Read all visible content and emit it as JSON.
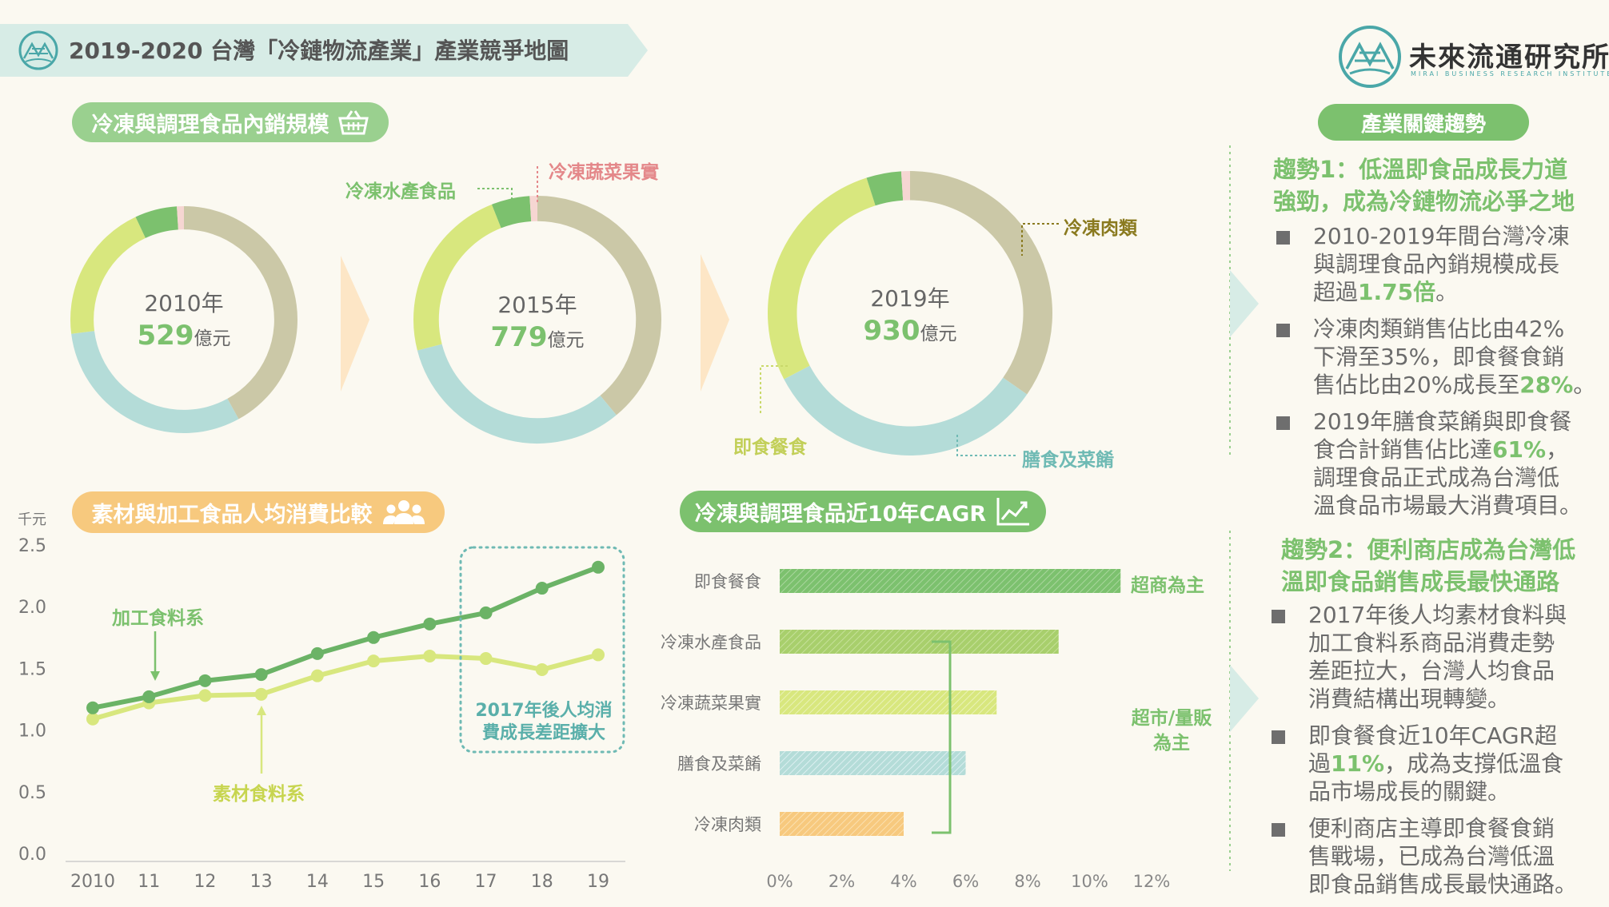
{
  "header": {
    "title": "2019-2020 台灣「冷鏈物流產業」產業競爭地圖"
  },
  "brand": {
    "name": "未來流通研究所",
    "tagline": "MIRAI BUSINESS RESEARCH INSTITUTE"
  },
  "sections": {
    "domestic_scale": "冷凍與調理食品內銷規模",
    "per_capita": "素材與加工食品人均消費比較",
    "cagr": "冷凍與調理食品近10年CAGR",
    "trends": "產業關鍵趨勢"
  },
  "donut_labels": {
    "seafood": "冷凍水產食品",
    "vegetables": "冷凍蔬菜果實",
    "meat": "冷凍肉類",
    "ready_meals": "即食餐食",
    "side_dishes": "膳食及菜餚"
  },
  "line_annotations": {
    "processed": "加工食料系",
    "raw": "素材食料系",
    "gap_note_line1": "2017年後人均消",
    "gap_note_line2": "費成長差距擴大"
  },
  "bar_annotations": {
    "cvs": "超商為主",
    "market_line1": "超市/量販",
    "market_line2": "為主"
  },
  "trends": {
    "trend1_title_line1": "趨勢1：低溫即食品成長力道",
    "trend1_title_line2": "強勁，成為冷鏈物流必爭之地",
    "t1b1_l1": "2010-2019年間台灣冷凍",
    "t1b1_l2": "與調理食品內銷規模成長",
    "t1b1_l3a": "超過",
    "t1b1_l3b": "1.75倍",
    "t1b1_l3c": "。",
    "t1b2_l1": "冷凍肉類銷售佔比由42%",
    "t1b2_l2": "下滑至35%，即食餐食銷",
    "t1b2_l3a": "售佔比由20%成長至",
    "t1b2_l3b": "28%",
    "t1b2_l3c": "。",
    "t1b3_l1": "2019年膳食菜餚與即食餐",
    "t1b3_l2a": "食合計銷售佔比達",
    "t1b3_l2b": "61%",
    "t1b3_l2c": "，",
    "t1b3_l3": "調理食品正式成為台灣低",
    "t1b3_l4": "溫食品市場最大消費項目。",
    "trend2_title_line1": "趨勢2：便利商店成為台灣低",
    "trend2_title_line2": "溫即食品銷售成長最快通路",
    "t2b1_l1": "2017年後人均素材食料與",
    "t2b1_l2": "加工食料系商品消費走勢",
    "t2b1_l3": "差距拉大，台灣人均食品",
    "t2b1_l4": "消費結構出現轉變。",
    "t2b2_l1": "即食餐食近10年CAGR超",
    "t2b2_l2a": "過",
    "t2b2_l2b": "11%",
    "t2b2_l2c": "，成為支撐低溫食",
    "t2b2_l3": "品市場成長的關鍵。",
    "t2b3_l1": "便利商店主導即食餐食銷",
    "t2b3_l2": "售戰場，已成為台灣低溫",
    "t2b3_l3": "即食品銷售成長最快通路。"
  },
  "colors": {
    "header_band": "#d7ece6",
    "green": "#7cc16e",
    "dark_green": "#6bb366",
    "light_green": "#d8e77e",
    "teal": "#b4dcd8",
    "khaki": "#cbc8a7",
    "pink": "#f6d6d2",
    "orange": "#f7c97e",
    "text_gray": "#666666",
    "brand_teal": "#4aa7a8"
  },
  "chart_data": [
    {
      "type": "pie",
      "variant": "donut",
      "center_year": "2010年",
      "center_value": "529",
      "center_unit": "億元",
      "categories": [
        "冷凍肉類",
        "膳食及菜餚",
        "即食餐食",
        "冷凍水產食品",
        "冷凍蔬菜果實"
      ],
      "values": [
        42,
        31,
        20,
        6,
        1
      ]
    },
    {
      "type": "pie",
      "variant": "donut",
      "center_year": "2015年",
      "center_value": "779",
      "center_unit": "億元",
      "categories": [
        "冷凍肉類",
        "膳食及菜餚",
        "即食餐食",
        "冷凍水產食品",
        "冷凍蔬菜果實"
      ],
      "values": [
        39,
        32,
        23,
        5,
        1
      ]
    },
    {
      "type": "pie",
      "variant": "donut",
      "center_year": "2019年",
      "center_value": "930",
      "center_unit": "億元",
      "categories": [
        "冷凍肉類",
        "膳食及菜餚",
        "即食餐食",
        "冷凍水產食品",
        "冷凍蔬菜果實"
      ],
      "values": [
        35,
        33,
        28,
        4,
        1
      ]
    },
    {
      "type": "line",
      "ylabel": "千元",
      "x": [
        "2010",
        "11",
        "12",
        "13",
        "14",
        "15",
        "16",
        "17",
        "18",
        "19"
      ],
      "yticks": [
        "0.0",
        "0.5",
        "1.0",
        "1.5",
        "2.0",
        "2.5"
      ],
      "ylim": [
        0,
        2.5
      ],
      "series": [
        {
          "name": "加工食料系",
          "values": [
            1.18,
            1.27,
            1.4,
            1.45,
            1.62,
            1.75,
            1.86,
            1.95,
            2.15,
            2.32
          ]
        },
        {
          "name": "素材食料系",
          "values": [
            1.09,
            1.22,
            1.28,
            1.29,
            1.44,
            1.56,
            1.6,
            1.58,
            1.49,
            1.61
          ]
        }
      ]
    },
    {
      "type": "bar",
      "orientation": "horizontal",
      "categories": [
        "即食餐食",
        "冷凍水產食品",
        "冷凍蔬菜果實",
        "膳食及菜餚",
        "冷凍肉類"
      ],
      "values": [
        11,
        9,
        7,
        6,
        4
      ],
      "xticks": [
        "0%",
        "2%",
        "4%",
        "6%",
        "8%",
        "10%",
        "12%"
      ],
      "xlim": [
        0,
        12
      ]
    }
  ]
}
